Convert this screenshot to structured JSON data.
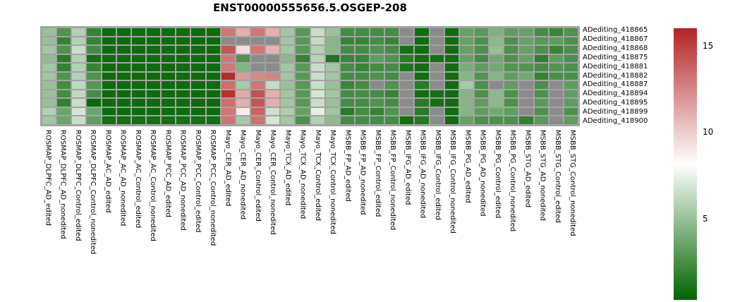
{
  "chart_data": {
    "type": "heatmap",
    "title": "ENST00000555656.5.OSGEP-208",
    "rows": [
      "ADediting_418865",
      "ADediting_418867",
      "ADediting_418868",
      "ADediting_418875",
      "ADediting_418881",
      "ADediting_418882",
      "ADediting_418887",
      "ADediting_418894",
      "ADediting_418895",
      "ADediting_418899",
      "ADediting_418900"
    ],
    "columns": [
      "ROSMAP_DLPFC_AD_edited",
      "ROSMAP_DLPFC_AD_nonedited",
      "ROSMAP_DLPFC_Control_edited",
      "ROSMAP_DLPFC_Control_nonedited",
      "ROSMAP_AC_AD_edited",
      "ROSMAP_AC_AD_nonedited",
      "ROSMAP_AC_Control_edited",
      "ROSMAP_AC_Control_nonedited",
      "ROSMAP_PCC_AD_edited",
      "ROSMAP_PCC_AD_nonedited",
      "ROSMAP_PCC_Control_edited",
      "ROSMAP_PCC_Control_nonedited",
      "Mayo_CER_AD_edited",
      "Mayo_CER_AD_nonedited",
      "Mayo_CER_Control_edited",
      "Mayo_CER_Control_nonedited",
      "Mayo_TCX_AD_edited",
      "Mayo_TCX_AD_nonedited",
      "Mayo_TCX_Control_edited",
      "Mayo_TCX_Control_nonedited",
      "MSBB_FP_AD_edited",
      "MSBB_FP_AD_nonedited",
      "MSBB_FP_Control_edited",
      "MSBB_FP_Control_nonedited",
      "MSBB_IFG_AD_edited",
      "MSBB_IFG_AD_nonedited",
      "MSBB_IFG_Control_edited",
      "MSBB_IFG_Control_nonedited",
      "MSBB_PG_AD_edited",
      "MSBB_PG_AD_nonedited",
      "MSBB_PG_Control_edited",
      "MSBB_PG_Control_nonedited",
      "MSBB_STG_AD_edited",
      "MSBB_STG_AD_nonedited",
      "MSBB_STG_Control_edited",
      "MSBB_STG_Control_nonedited"
    ],
    "values": [
      [
        5.0,
        2.7,
        5.8,
        1.9,
        0.7,
        0.7,
        0.7,
        0.7,
        0.7,
        0.7,
        0.7,
        0.7,
        13.0,
        11.0,
        13.0,
        11.0,
        5.3,
        3.0,
        6.5,
        5.0,
        2.4,
        2.4,
        2.4,
        2.4,
        null,
        0.8,
        null,
        0.8,
        3.4,
        3.0,
        4.2,
        3.2,
        3.4,
        2.4,
        2.0,
        2.7
      ],
      [
        5.0,
        1.9,
        5.8,
        1.9,
        0.7,
        0.7,
        0.7,
        0.7,
        0.7,
        0.7,
        0.7,
        0.7,
        null,
        null,
        null,
        null,
        5.3,
        3.0,
        6.3,
        4.5,
        2.0,
        2.0,
        2.4,
        2.0,
        null,
        0.8,
        null,
        0.8,
        3.4,
        2.6,
        4.6,
        2.6,
        3.4,
        3.0,
        3.2,
        2.6
      ],
      [
        5.3,
        2.7,
        6.5,
        2.4,
        0.7,
        0.7,
        0.7,
        0.7,
        0.7,
        0.7,
        0.7,
        0.7,
        14.2,
        9.3,
        13.0,
        10.8,
        5.3,
        3.0,
        5.8,
        4.5,
        2.4,
        2.4,
        2.7,
        2.4,
        0.9,
        0.8,
        null,
        0.8,
        3.4,
        2.6,
        4.9,
        2.6,
        3.4,
        2.6,
        2.0,
        2.6
      ],
      [
        4.7,
        1.5,
        5.8,
        0.9,
        0.7,
        0.7,
        0.7,
        0.7,
        0.7,
        0.7,
        0.7,
        0.7,
        13.0,
        2.7,
        null,
        null,
        4.6,
        1.9,
        5.9,
        1.2,
        2.0,
        2.0,
        3.2,
        2.7,
        1.5,
        0.8,
        0.9,
        0.8,
        3.4,
        2.4,
        3.8,
        2.6,
        3.4,
        1.7,
        3.2,
        2.6
      ],
      [
        5.3,
        1.9,
        5.8,
        1.9,
        0.7,
        0.7,
        0.7,
        0.7,
        0.7,
        0.7,
        0.7,
        0.7,
        13.0,
        4.3,
        null,
        null,
        5.3,
        3.0,
        6.5,
        5.3,
        2.4,
        2.0,
        2.4,
        2.4,
        1.2,
        0.8,
        null,
        0.8,
        4.0,
        3.2,
        3.8,
        2.8,
        2.8,
        2.4,
        2.8,
        2.6
      ],
      [
        5.3,
        2.7,
        5.8,
        2.7,
        0.7,
        0.7,
        0.7,
        0.7,
        0.7,
        0.7,
        0.7,
        0.7,
        15.7,
        11.8,
        12.4,
        12.6,
        5.3,
        3.0,
        6.5,
        5.3,
        2.4,
        2.4,
        2.7,
        2.4,
        null,
        0.8,
        null,
        0.8,
        4.4,
        2.8,
        4.4,
        3.2,
        3.8,
        1.9,
        2.6,
        2.6
      ],
      [
        5.0,
        2.4,
        6.2,
        2.9,
        0.7,
        0.7,
        0.7,
        0.7,
        0.7,
        0.7,
        0.7,
        0.7,
        13.3,
        5.4,
        13.0,
        6.3,
        5.0,
        3.0,
        6.5,
        5.0,
        2.0,
        2.4,
        null,
        2.7,
        null,
        1.5,
        null,
        0.8,
        5.4,
        2.6,
        null,
        3.2,
        null,
        2.6,
        null,
        3.2
      ],
      [
        5.0,
        2.4,
        6.2,
        2.4,
        0.7,
        0.7,
        0.7,
        0.7,
        0.7,
        0.7,
        0.7,
        0.7,
        15.5,
        11.2,
        14.3,
        11.0,
        5.3,
        3.0,
        6.9,
        5.3,
        2.4,
        2.4,
        2.4,
        2.0,
        null,
        0.8,
        0.9,
        0.8,
        4.4,
        2.6,
        4.6,
        2.6,
        null,
        2.6,
        null,
        3.2
      ],
      [
        5.0,
        1.8,
        6.5,
        0.6,
        0.7,
        0.7,
        0.7,
        0.7,
        0.7,
        0.7,
        0.7,
        0.7,
        13.3,
        11.0,
        14.2,
        11.0,
        5.3,
        3.0,
        6.5,
        5.0,
        2.4,
        2.4,
        2.7,
        2.4,
        null,
        1.5,
        0.9,
        0.8,
        4.4,
        3.2,
        4.6,
        2.6,
        null,
        3.0,
        null,
        3.2
      ],
      [
        5.8,
        3.6,
        6.9,
        3.6,
        0.7,
        0.7,
        0.7,
        0.7,
        0.7,
        0.7,
        0.7,
        0.7,
        13.0,
        8.8,
        13.7,
        6.6,
        5.7,
        3.4,
        7.4,
        5.3,
        1.5,
        2.4,
        1.9,
        2.7,
        null,
        1.5,
        null,
        0.8,
        4.4,
        3.2,
        3.8,
        3.2,
        null,
        2.6,
        null,
        2.6
      ],
      [
        5.3,
        3.6,
        6.5,
        3.2,
        0.9,
        0.9,
        0.9,
        0.9,
        0.9,
        0.9,
        0.9,
        0.9,
        13.1,
        5.4,
        13.2,
        6.9,
        5.3,
        2.6,
        5.8,
        4.7,
        2.4,
        2.4,
        2.4,
        2.4,
        0.9,
        1.4,
        null,
        0.8,
        3.4,
        2.6,
        2.6,
        2.6,
        1.8,
        3.0,
        null,
        3.2
      ]
    ],
    "colorbar": {
      "ticks": [
        15,
        10,
        5
      ],
      "vmin": 0.3,
      "vmid": 8.15,
      "vmax": 16.0,
      "color_low": "#006400",
      "color_mid": "#ffffff",
      "color_high": "#b22423",
      "na_color": "#8b8b8b",
      "grid_color": "#a3a3a3"
    },
    "legend_position": "right",
    "grid": false
  }
}
